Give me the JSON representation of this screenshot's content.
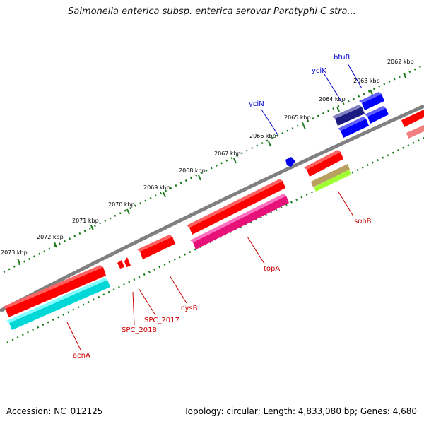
{
  "title": "Salmonella enterica subsp. enterica serovar Paratyphi C stra...",
  "footer": {
    "accession": "Accession: NC_012125",
    "topology": "Topology: circular; Length: 4,833,080 bp; Genes: 4,680"
  },
  "ticks": [
    {
      "label": "2062 kbp"
    },
    {
      "label": "2063 kbp"
    },
    {
      "label": "2064 kbp"
    },
    {
      "label": "2065 kbp"
    },
    {
      "label": "2066 kbp"
    },
    {
      "label": "2067 kbp"
    },
    {
      "label": "2068 kbp"
    },
    {
      "label": "2069 kbp"
    },
    {
      "label": "2070 kbp"
    },
    {
      "label": "2071 kbp"
    },
    {
      "label": "2072 kbp"
    },
    {
      "label": "2073 kbp"
    }
  ],
  "genes": [
    {
      "name": "btuR",
      "color": "#0000cc"
    },
    {
      "name": "yciK",
      "color": "#0000cc"
    },
    {
      "name": "yciN",
      "color": "#0000cc"
    },
    {
      "name": "sohB",
      "color": "#cc0000"
    },
    {
      "name": "topA",
      "color": "#cc0000"
    },
    {
      "name": "cysB",
      "color": "#cc0000"
    },
    {
      "name": "SPC_2017",
      "color": "#cc0000"
    },
    {
      "name": "SPC_2018",
      "color": "#cc0000"
    },
    {
      "name": "acnA",
      "color": "#cc0000"
    }
  ],
  "colors": {
    "backbone": "#808080",
    "tick": "#1a7a1a",
    "gene_red": "#ff0000",
    "gene_blue": "#0000ff",
    "gene_cyan": "#00ffff",
    "gene_magenta": "#ff1aa0",
    "gene_navy": "#000080",
    "gene_olive": "#b8a060",
    "gene_lime": "#a0ff30",
    "gene_pink": "#f08080"
  }
}
